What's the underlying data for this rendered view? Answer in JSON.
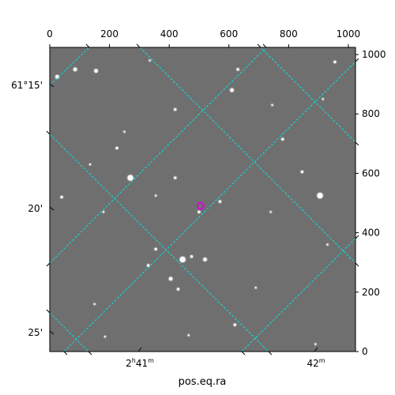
{
  "chart_data": {
    "type": "scatter",
    "title": "",
    "xlabel": "pos.eq.ra",
    "ylabel": "",
    "pixel_axes": {
      "x_range": [
        0,
        1024
      ],
      "y_range": [
        0,
        1024
      ],
      "top_ticks": [
        "0",
        "200",
        "400",
        "600",
        "800",
        "1000"
      ],
      "right_ticks": [
        "0",
        "200",
        "400",
        "600",
        "800",
        "1000"
      ]
    },
    "world_axes": {
      "ra_ticks": [
        {
          "h": "2",
          "hu": "h",
          "m": "41",
          "mu": "m"
        },
        {
          "h": "",
          "hu": "",
          "m": "42",
          "mu": "m"
        }
      ],
      "dec_ticks": [
        "61°15'",
        "20'",
        "25'"
      ]
    },
    "grid": true,
    "grid_color": "#00e5e5",
    "stars": [
      {
        "x": 25,
        "y": 925,
        "b": 3
      },
      {
        "x": 85,
        "y": 950,
        "b": 3
      },
      {
        "x": 155,
        "y": 945,
        "b": 3
      },
      {
        "x": 335,
        "y": 980,
        "b": 1
      },
      {
        "x": 500,
        "y": 470,
        "b": 2
      },
      {
        "x": 610,
        "y": 880,
        "b": 3
      },
      {
        "x": 630,
        "y": 950,
        "b": 2
      },
      {
        "x": 420,
        "y": 815,
        "b": 2
      },
      {
        "x": 270,
        "y": 585,
        "b": 4
      },
      {
        "x": 225,
        "y": 685,
        "b": 2
      },
      {
        "x": 250,
        "y": 740,
        "b": 1
      },
      {
        "x": 135,
        "y": 630,
        "b": 1
      },
      {
        "x": 40,
        "y": 520,
        "b": 2
      },
      {
        "x": 180,
        "y": 470,
        "b": 1
      },
      {
        "x": 420,
        "y": 585,
        "b": 2
      },
      {
        "x": 570,
        "y": 505,
        "b": 2
      },
      {
        "x": 905,
        "y": 525,
        "b": 4
      },
      {
        "x": 845,
        "y": 605,
        "b": 2
      },
      {
        "x": 780,
        "y": 715,
        "b": 2
      },
      {
        "x": 955,
        "y": 975,
        "b": 2
      },
      {
        "x": 915,
        "y": 850,
        "b": 1
      },
      {
        "x": 355,
        "y": 345,
        "b": 2
      },
      {
        "x": 330,
        "y": 290,
        "b": 2
      },
      {
        "x": 445,
        "y": 310,
        "b": 4
      },
      {
        "x": 520,
        "y": 310,
        "b": 3
      },
      {
        "x": 475,
        "y": 320,
        "b": 2
      },
      {
        "x": 405,
        "y": 245,
        "b": 3
      },
      {
        "x": 430,
        "y": 210,
        "b": 2
      },
      {
        "x": 620,
        "y": 90,
        "b": 2
      },
      {
        "x": 930,
        "y": 360,
        "b": 1
      },
      {
        "x": 740,
        "y": 470,
        "b": 1
      },
      {
        "x": 355,
        "y": 525,
        "b": 1
      },
      {
        "x": 150,
        "y": 160,
        "b": 1
      },
      {
        "x": 690,
        "y": 215,
        "b": 1
      },
      {
        "x": 185,
        "y": 50,
        "b": 1
      },
      {
        "x": 890,
        "y": 25,
        "b": 1
      },
      {
        "x": 465,
        "y": 55,
        "b": 1
      },
      {
        "x": 745,
        "y": 830,
        "b": 1
      }
    ],
    "marker": {
      "x": 505,
      "y": 490,
      "color": "#e000e0"
    }
  }
}
